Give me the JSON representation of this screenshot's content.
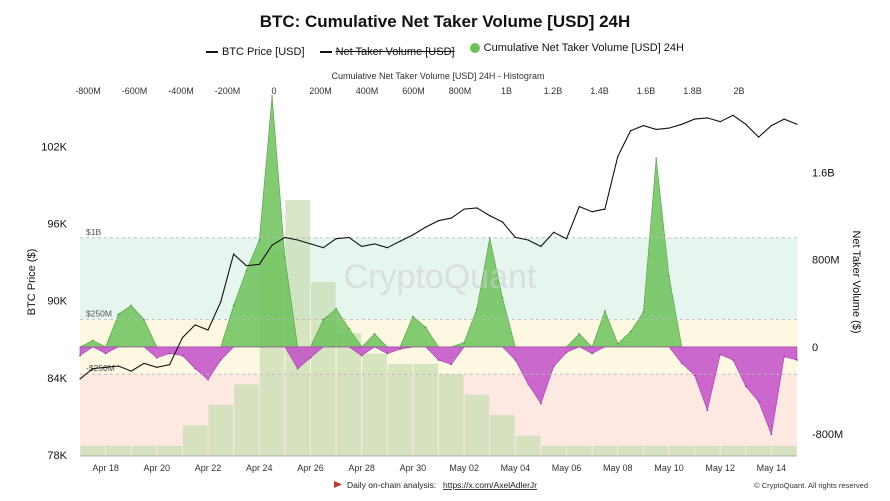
{
  "title": "BTC: Cumulative Net Taker Volume [USD] 24H",
  "legend": [
    {
      "label": "BTC Price [USD]",
      "swatch": "line",
      "color": "#111111",
      "disabled": false
    },
    {
      "label": "Net Taker Volume [USD]",
      "swatch": "line",
      "color": "#111111",
      "disabled": true
    },
    {
      "label": "Cumulative Net Taker Volume [USD] 24H",
      "swatch": "dot",
      "color": "#6cc25a",
      "disabled": false
    }
  ],
  "watermark": "CryptoQuant",
  "footer": {
    "analysis_prefix": "Daily on-chain analysis: ",
    "analysis_link": "https://x.com/AxelAdlerJr",
    "copyright": "© CryptoQuant. All rights reserved"
  },
  "colors": {
    "positive": "#6cc25a",
    "negative": "#c24fc9",
    "price": "#111111",
    "histogram": "#c8ddb4",
    "band_upper": "#e6f6ee",
    "band_mid": "#fdf8e2",
    "band_lower": "#fde9e2"
  },
  "chart_data": {
    "type": "area",
    "top_axis": {
      "label": "Cumulative Net Taker Volume [USD] 24H - Histogram",
      "ticks": [
        "-800M",
        "-600M",
        "-400M",
        "-200M",
        "0",
        "200M",
        "400M",
        "600M",
        "800M",
        "1B",
        "1.2B",
        "1.4B",
        "1.6B",
        "1.8B",
        "2B"
      ]
    },
    "x_axis": {
      "ticks": [
        "Apr 18",
        "Apr 20",
        "Apr 22",
        "Apr 24",
        "Apr 26",
        "Apr 28",
        "Apr 30",
        "May 02",
        "May 04",
        "May 06",
        "May 08",
        "May 10",
        "May 12",
        "May 14"
      ],
      "range": [
        0,
        28
      ]
    },
    "y_left": {
      "label": "BTC Price ($)",
      "ticks": [
        "78K",
        "84K",
        "90K",
        "96K",
        "102K"
      ],
      "range": [
        78000,
        106000
      ]
    },
    "y_right": {
      "label": "Net Taker Volume ($)",
      "ticks": [
        "-800M",
        "0",
        "800M",
        "1.6B"
      ],
      "range": [
        -1000000000,
        2300000000
      ]
    },
    "levels": [
      {
        "label": "$1B",
        "value": 1000000000
      },
      {
        "label": "$250M",
        "value": 250000000
      },
      {
        "label": "-$250M",
        "value": -250000000
      }
    ],
    "series": [
      {
        "name": "BTC Price [USD]",
        "axis": "left",
        "x": [
          0,
          0.5,
          1,
          1.5,
          2,
          2.5,
          3,
          3.5,
          4,
          4.5,
          5,
          5.5,
          6,
          6.5,
          7,
          7.5,
          8,
          8.5,
          9,
          9.5,
          10,
          10.5,
          11,
          11.5,
          12,
          12.5,
          13,
          13.5,
          14,
          14.5,
          15,
          15.5,
          16,
          16.5,
          17,
          17.5,
          18,
          18.5,
          19,
          19.5,
          20,
          20.5,
          21,
          21.5,
          22,
          22.5,
          23,
          23.5,
          24,
          24.5,
          25,
          25.5,
          26,
          26.5,
          27,
          27.5,
          28
        ],
        "values": [
          84000,
          84800,
          84900,
          85000,
          84600,
          85200,
          84900,
          85100,
          87200,
          88200,
          87800,
          90000,
          93700,
          92800,
          92900,
          94400,
          95000,
          94800,
          94500,
          94200,
          94900,
          95000,
          94300,
          94500,
          94200,
          94700,
          95200,
          95800,
          96300,
          96500,
          97200,
          97300,
          96700,
          96200,
          95000,
          94800,
          94300,
          95400,
          94900,
          97400,
          97000,
          97200,
          101300,
          103300,
          103700,
          103400,
          103500,
          103800,
          104200,
          104300,
          104000,
          104500,
          103800,
          102800,
          103700,
          104200,
          103800
        ]
      },
      {
        "name": "Cumulative Net Taker Volume [USD] 24H",
        "axis": "right",
        "x": [
          0,
          0.5,
          1,
          1.5,
          2,
          2.5,
          3,
          3.5,
          4,
          4.5,
          5,
          5.5,
          6,
          6.5,
          7,
          7.5,
          8,
          8.5,
          9,
          9.5,
          10,
          10.5,
          11,
          11.5,
          12,
          12.5,
          13,
          13.5,
          14,
          14.5,
          15,
          15.5,
          16,
          16.5,
          17,
          17.5,
          18,
          18.5,
          19,
          19.5,
          20,
          20.5,
          21,
          21.5,
          22,
          22.5,
          23,
          23.5,
          24,
          24.5,
          25,
          25.5,
          26,
          26.5,
          27,
          27.5,
          28
        ],
        "values": [
          -80000000,
          60000000,
          -60000000,
          300000000,
          380000000,
          250000000,
          -100000000,
          -60000000,
          -80000000,
          -200000000,
          -300000000,
          -120000000,
          380000000,
          700000000,
          980000000,
          2300000000,
          820000000,
          -200000000,
          -100000000,
          250000000,
          350000000,
          170000000,
          -80000000,
          120000000,
          -60000000,
          -20000000,
          280000000,
          180000000,
          -120000000,
          -160000000,
          40000000,
          350000000,
          1000000000,
          450000000,
          -120000000,
          -340000000,
          -520000000,
          -180000000,
          -50000000,
          120000000,
          -60000000,
          330000000,
          30000000,
          140000000,
          320000000,
          1730000000,
          650000000,
          -150000000,
          -260000000,
          -580000000,
          -70000000,
          -120000000,
          -360000000,
          -500000000,
          -800000000,
          -90000000,
          -120000000
        ]
      },
      {
        "name": "Cumulative Net Taker Volume [USD] 24H - Histogram",
        "axis": "top",
        "x": [
          0.5,
          1.5,
          2.5,
          3.5,
          4.5,
          5.5,
          6.5,
          7.5,
          8.5,
          9.5,
          10.5,
          11.5,
          12.5,
          13.5,
          14.5,
          15.5,
          16.5,
          17.5,
          18.5,
          19.5,
          20.5,
          21.5,
          22.5,
          23.5,
          24.5,
          25.5,
          26.5,
          27.5
        ],
        "values": [
          1,
          1,
          1,
          1,
          3,
          5,
          7,
          20,
          25,
          17,
          12,
          10,
          9,
          9,
          8,
          6,
          4,
          2,
          1,
          1,
          1,
          1,
          1,
          1,
          1,
          1,
          1,
          1
        ]
      }
    ]
  }
}
